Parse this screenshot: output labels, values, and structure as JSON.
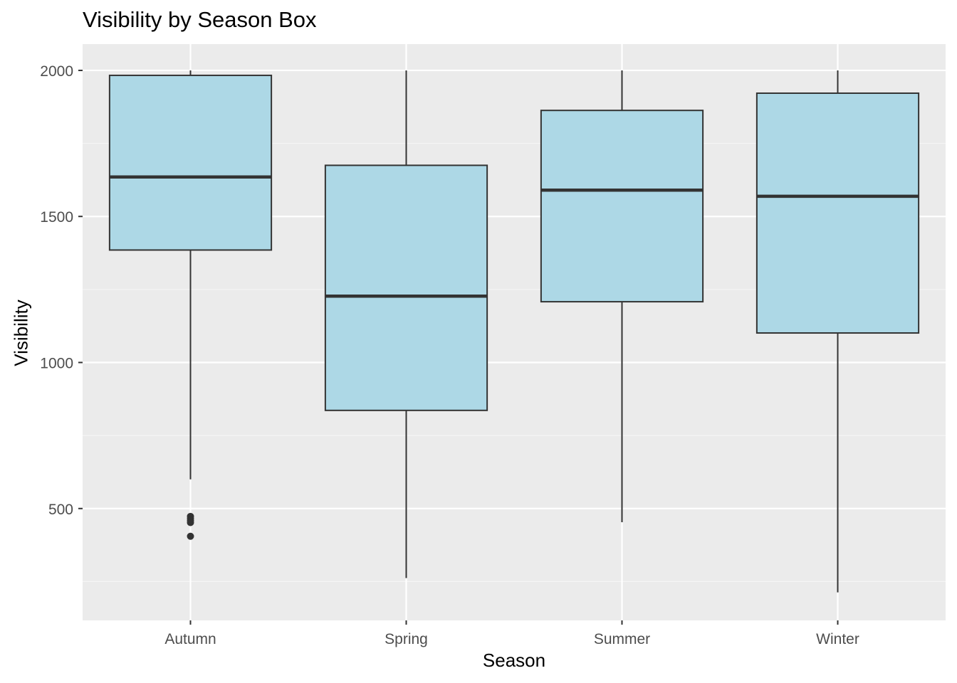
{
  "chart_data": {
    "type": "boxplot",
    "title": "Visibility by Season Box",
    "xlabel": "Season",
    "ylabel": "Visibility",
    "categories": [
      "Autumn",
      "Spring",
      "Summer",
      "Winter"
    ],
    "ylim": [
      117,
      2090
    ],
    "yticks": [
      500,
      1000,
      1500,
      2000
    ],
    "y_minor_ticks": [
      250,
      750,
      1250,
      1750
    ],
    "grid": true,
    "boxes": [
      {
        "category": "Autumn",
        "min": 600,
        "q1": 1385,
        "median": 1635,
        "q3": 1983,
        "max": 2000,
        "outliers": [
          473,
          466,
          459,
          452,
          405
        ]
      },
      {
        "category": "Spring",
        "min": 262,
        "q1": 836,
        "median": 1227,
        "q3": 1675,
        "max": 2000,
        "outliers": []
      },
      {
        "category": "Summer",
        "min": 453,
        "q1": 1208,
        "median": 1590,
        "q3": 1863,
        "max": 2000,
        "outliers": []
      },
      {
        "category": "Winter",
        "min": 213,
        "q1": 1101,
        "median": 1569,
        "q3": 1922,
        "max": 2000,
        "outliers": []
      }
    ],
    "colors": {
      "panel_background": "#ebebeb",
      "grid_major": "#ffffff",
      "grid_minor": "#f5f5f5",
      "box_fill": "#add8e6",
      "box_stroke": "#333333",
      "tick_label": "#4d4d4d",
      "tick_mark": "#333333"
    }
  }
}
